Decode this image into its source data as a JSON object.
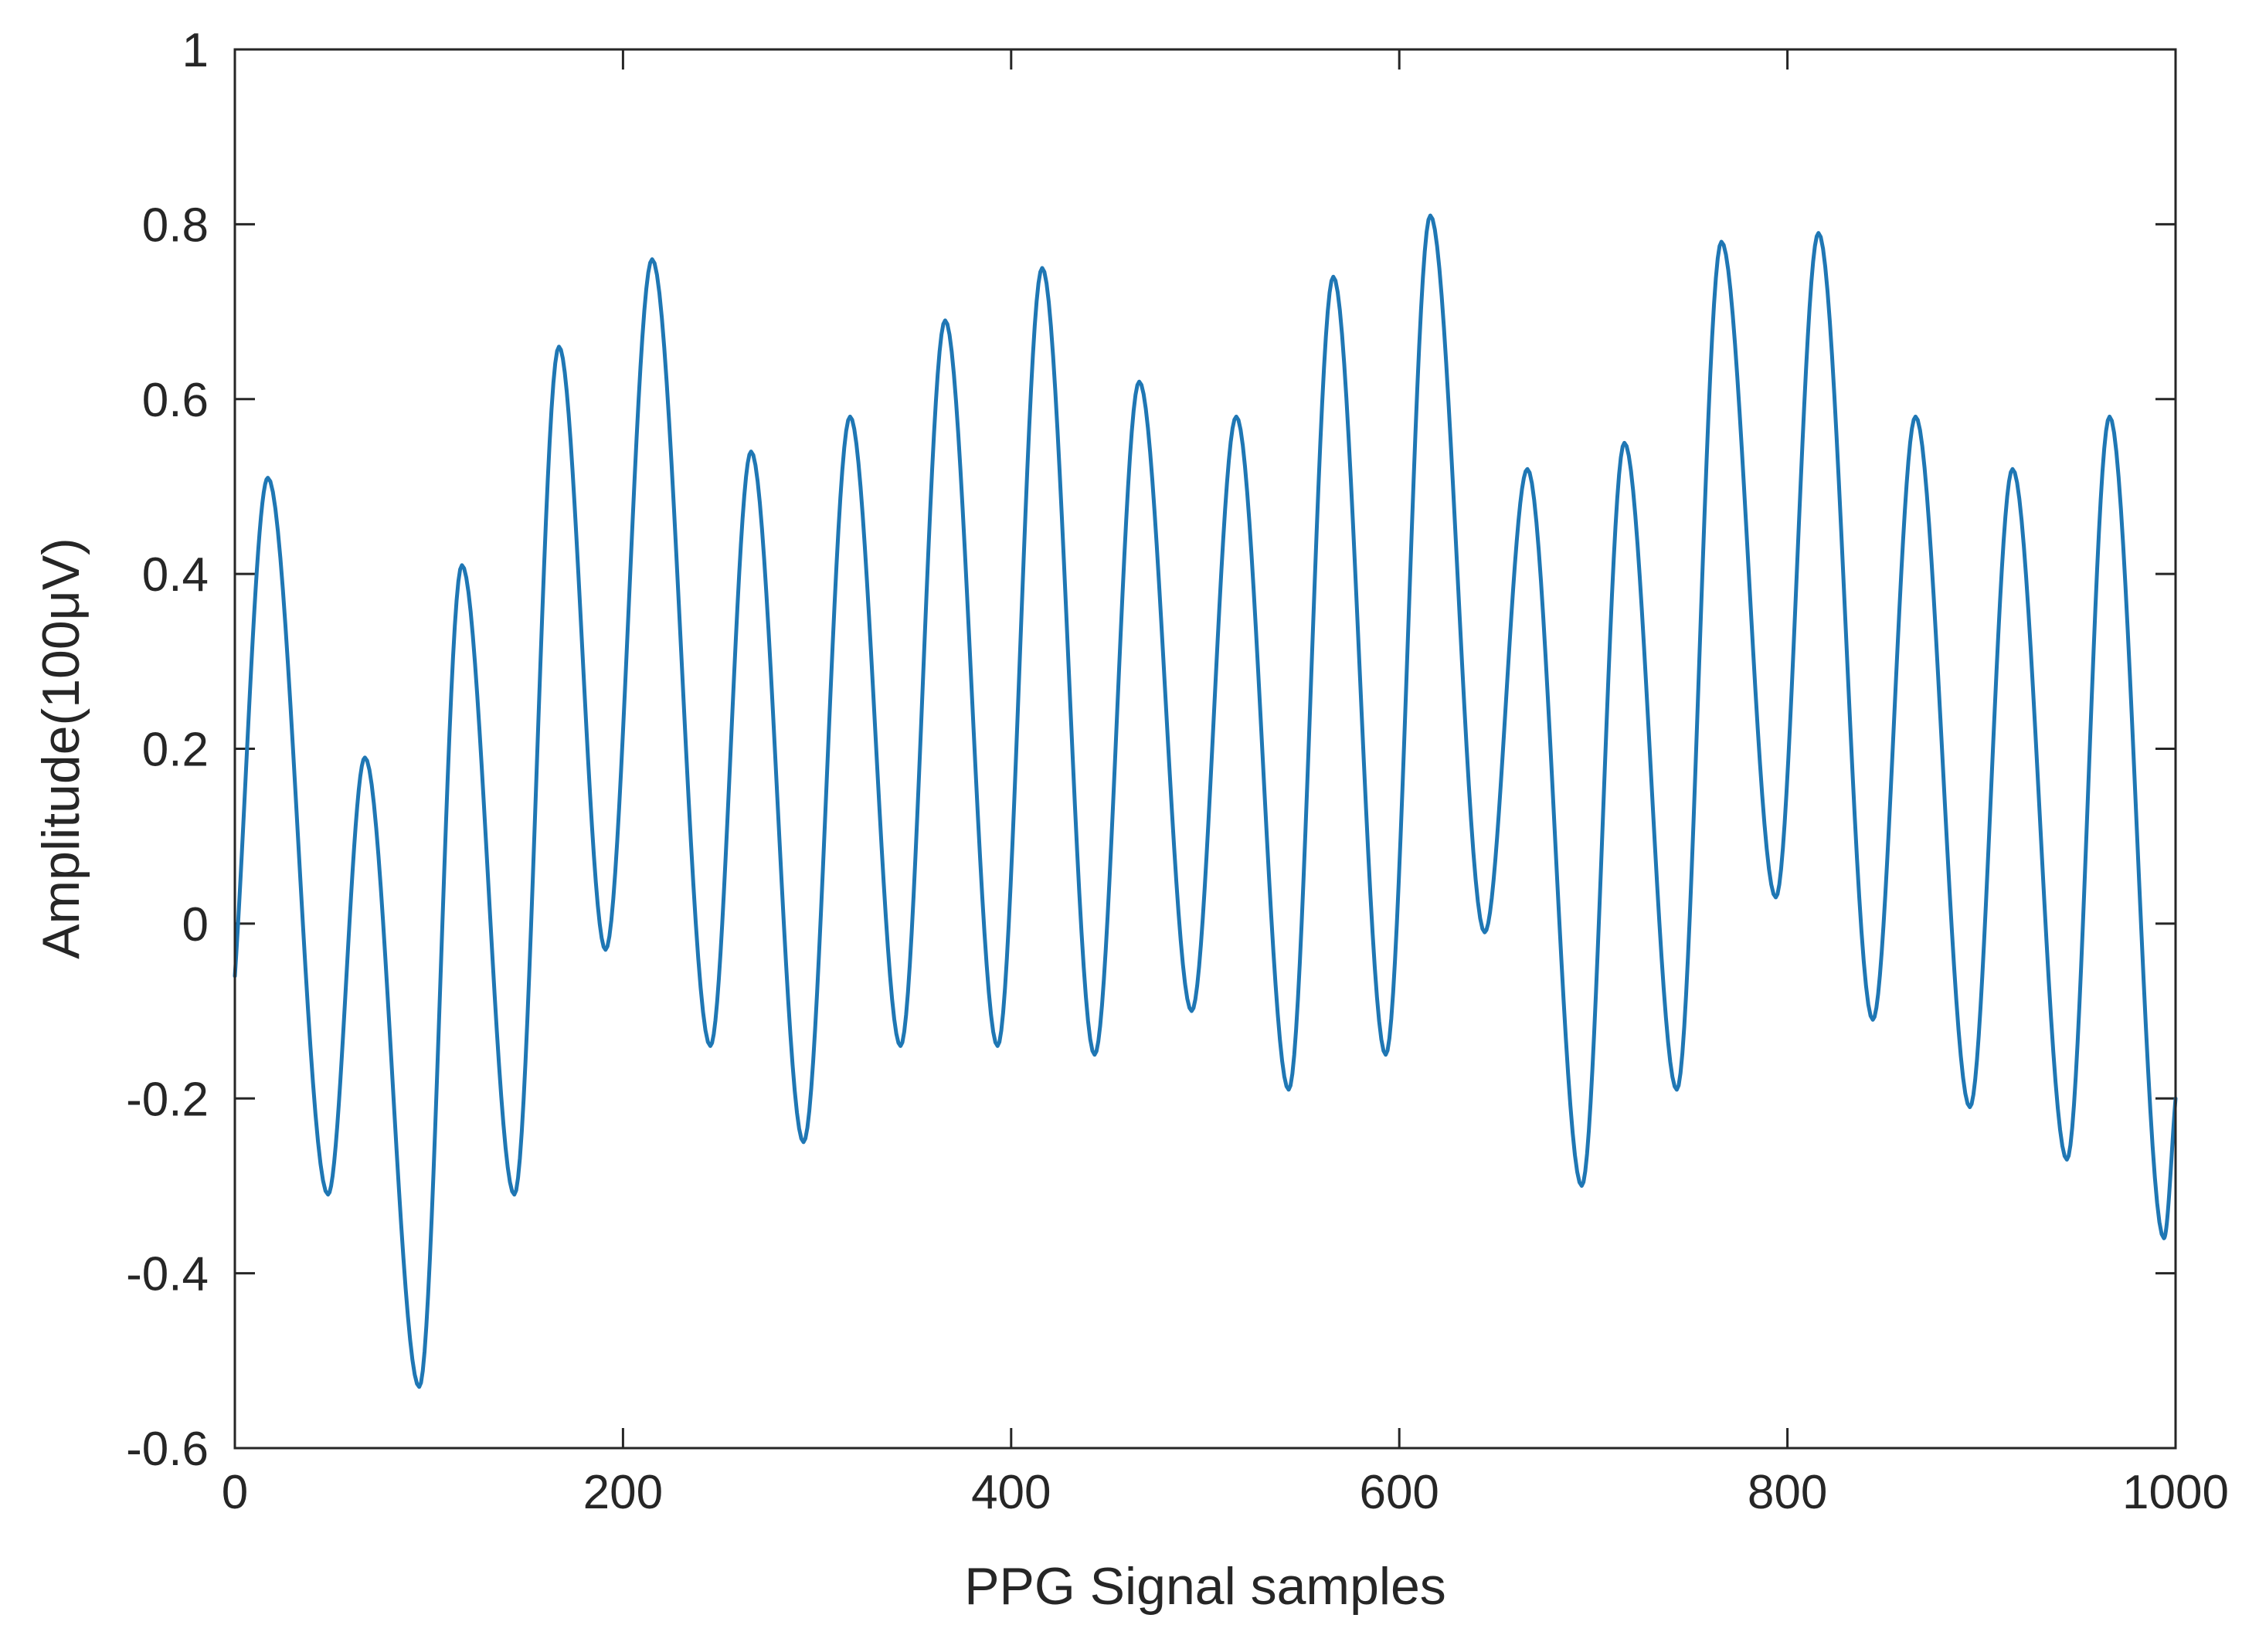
{
  "chart_data": {
    "type": "line",
    "title": "",
    "xlabel": "PPG Signal samples",
    "ylabel": "Amplitude(100μV)",
    "xlim": [
      0,
      1000
    ],
    "ylim": [
      -0.6,
      1
    ],
    "xticks": [
      0,
      200,
      400,
      600,
      800,
      1000
    ],
    "xtick_labels": [
      "0",
      "200",
      "400",
      "600",
      "800",
      "1000"
    ],
    "yticks": [
      -0.6,
      -0.4,
      -0.2,
      0,
      0.2,
      0.4,
      0.6,
      0.8,
      1
    ],
    "ytick_labels": [
      "-0.6",
      "-0.4",
      "-0.2",
      "0",
      "0.2",
      "0.4",
      "0.6",
      "0.8",
      "1"
    ],
    "grid": false,
    "legend": "none",
    "series": [
      {
        "color": "#1f77b4",
        "x": [
          0,
          17,
          48,
          67,
          95,
          117,
          144,
          167,
          191,
          215,
          245,
          266,
          293,
          317,
          343,
          366,
          393,
          416,
          443,
          466,
          493,
          516,
          543,
          566,
          593,
          616,
          644,
          666,
          694,
          716,
          743,
          766,
          794,
          816,
          844,
          866,
          894,
          916,
          944,
          966,
          994,
          1000
        ],
        "y": [
          -0.06,
          0.51,
          -0.31,
          0.19,
          -0.53,
          0.41,
          -0.31,
          0.66,
          -0.03,
          0.76,
          -0.14,
          0.54,
          -0.25,
          0.58,
          -0.14,
          0.69,
          -0.14,
          0.75,
          -0.15,
          0.62,
          -0.1,
          0.58,
          -0.19,
          0.74,
          -0.15,
          0.81,
          -0.01,
          0.52,
          -0.3,
          0.55,
          -0.19,
          0.78,
          0.03,
          0.79,
          -0.11,
          0.58,
          -0.21,
          0.52,
          -0.27,
          0.58,
          -0.36,
          -0.2
        ]
      }
    ]
  }
}
